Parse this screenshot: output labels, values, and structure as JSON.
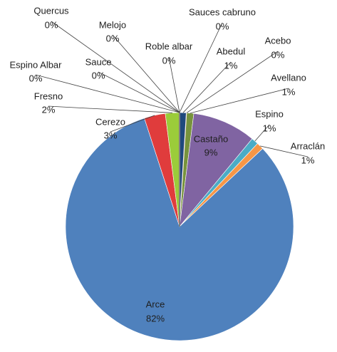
{
  "chart_data": {
    "type": "pie",
    "categories": [
      "Sauces cabruno",
      "Abedul",
      "Acebo",
      "Avellano",
      "Castaño",
      "Espino",
      "Arraclán",
      "Arce",
      "Cerezo",
      "Fresno",
      "Espino Albar",
      "Sauce",
      "Quercus",
      "Melojo",
      "Roble albar"
    ],
    "values": [
      0,
      1,
      0,
      1,
      9,
      1,
      1,
      82,
      3,
      2,
      0,
      0,
      0,
      0,
      0
    ],
    "value_labels": [
      "0%",
      "1%",
      "0%",
      "1%",
      "9%",
      "1%",
      "1%",
      "82%",
      "3%",
      "2%",
      "0%",
      "0%",
      "0%",
      "0%",
      "0%"
    ],
    "colors": [
      "#8eb4e3",
      "#1f497d",
      "#f2dcdb",
      "#77933c",
      "#8064a2",
      "#4bacc6",
      "#f79646",
      "#4f81bd",
      "#e03c3c",
      "#9bcc3a",
      "#c0c0c0",
      "#d99694",
      "#b3a2c7",
      "#95b3d7",
      "#7f7f7f"
    ]
  }
}
